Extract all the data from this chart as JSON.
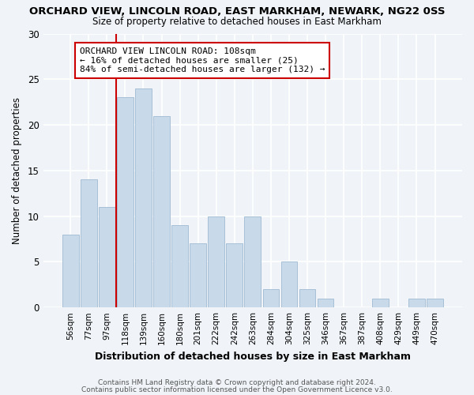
{
  "title": "ORCHARD VIEW, LINCOLN ROAD, EAST MARKHAM, NEWARK, NG22 0SS",
  "subtitle": "Size of property relative to detached houses in East Markham",
  "xlabel": "Distribution of detached houses by size in East Markham",
  "ylabel": "Number of detached properties",
  "bar_color": "#c8daea",
  "bar_edge_color": "#a8c0d6",
  "categories": [
    "56sqm",
    "77sqm",
    "97sqm",
    "118sqm",
    "139sqm",
    "160sqm",
    "180sqm",
    "201sqm",
    "222sqm",
    "242sqm",
    "263sqm",
    "284sqm",
    "304sqm",
    "325sqm",
    "346sqm",
    "367sqm",
    "387sqm",
    "408sqm",
    "429sqm",
    "449sqm",
    "470sqm"
  ],
  "values": [
    8,
    14,
    11,
    23,
    24,
    21,
    9,
    7,
    10,
    7,
    10,
    2,
    5,
    2,
    1,
    0,
    0,
    1,
    0,
    1,
    1
  ],
  "ylim": [
    0,
    30
  ],
  "yticks": [
    0,
    5,
    10,
    15,
    20,
    25,
    30
  ],
  "marker_bar_index": 3,
  "annotation_title": "ORCHARD VIEW LINCOLN ROAD: 108sqm",
  "annotation_line1": "← 16% of detached houses are smaller (25)",
  "annotation_line2": "84% of semi-detached houses are larger (132) →",
  "marker_color": "#cc0000",
  "background_color": "#f0f4f8",
  "footer_line1": "Contains HM Land Registry data © Crown copyright and database right 2024.",
  "footer_line2": "Contains public sector information licensed under the Open Government Licence v3.0."
}
